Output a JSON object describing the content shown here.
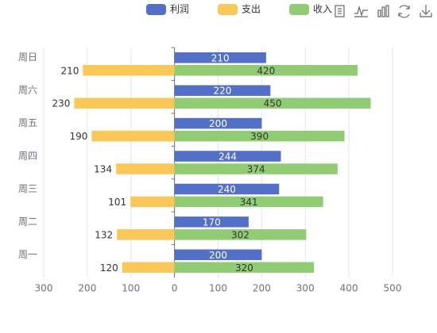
{
  "chart_data": {
    "type": "bar",
    "orientation": "horizontal",
    "categories": [
      "周一",
      "周二",
      "周三",
      "周四",
      "周五",
      "周六",
      "周日"
    ],
    "series": [
      {
        "name": "利润",
        "color": "#5470c6",
        "values": [
          200,
          170,
          240,
          244,
          200,
          220,
          210
        ]
      },
      {
        "name": "支出",
        "color": "#fac858",
        "stack": "总量",
        "values": [
          -120,
          -132,
          -101,
          -134,
          -190,
          -230,
          -210
        ],
        "value_labels": [
          "120",
          "132",
          "101",
          "134",
          "190",
          "230",
          "210"
        ]
      },
      {
        "name": "收入",
        "color": "#91cc75",
        "stack": "总量",
        "values": [
          320,
          302,
          341,
          374,
          390,
          450,
          420
        ]
      }
    ],
    "xlim": [
      -300,
      500
    ],
    "xticks": [
      {
        "value": -300,
        "label": "300"
      },
      {
        "value": -200,
        "label": "200"
      },
      {
        "value": -100,
        "label": "100"
      },
      0,
      100,
      200,
      300,
      400,
      500
    ],
    "grid": true
  }
}
